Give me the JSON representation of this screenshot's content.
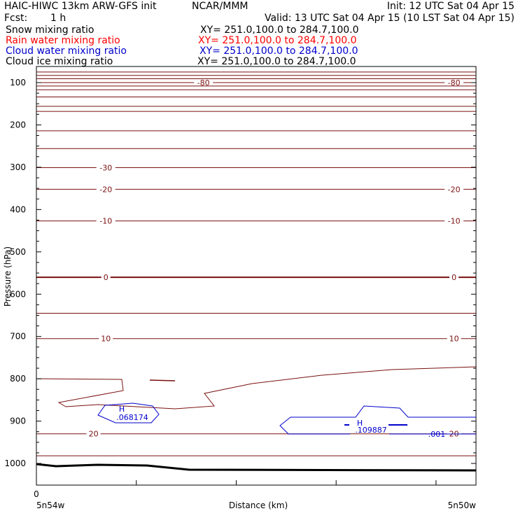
{
  "header": {
    "model": "HAIC-HIWC 13km ARW-GFS init",
    "org": "NCAR/MMM",
    "init": "Init: 12 UTC Sat 04 Apr 15",
    "fcst_label": "Fcst:",
    "fcst_value": "1 h",
    "valid": "Valid: 13 UTC Sat 04 Apr 15 (10 LST Sat 04 Apr 15)",
    "xy": "XY= 251.0,100.0 to 284.7,100.0"
  },
  "fields": [
    {
      "label": "Snow mixing ratio",
      "color": "#000000"
    },
    {
      "label": "Rain water mixing ratio",
      "color": "#ff0000"
    },
    {
      "label": "Cloud water mixing ratio",
      "color": "#0000cc"
    },
    {
      "label": "Cloud ice mixing ratio",
      "color": "#000000"
    }
  ],
  "colors": {
    "temperature": "#7a1010",
    "cloud_water": "#0000cc",
    "terrain": "#000000"
  },
  "chart_data": {
    "type": "cross-section contour",
    "ylabel": "Pressure (hPa)",
    "xlabel": "Distance (km)",
    "x_left_label": "5n54w",
    "x_right_label": "5n50w",
    "x_tick_labels": [
      "0"
    ],
    "xlim": [
      0,
      1
    ],
    "ylim": [
      1050,
      70
    ],
    "y_ticks": [
      100,
      200,
      300,
      400,
      500,
      600,
      700,
      800,
      900,
      1000
    ],
    "temperature_contours": [
      {
        "p": 75
      },
      {
        "p": 83
      },
      {
        "p": 91
      },
      {
        "p": 100,
        "label": "-80"
      },
      {
        "p": 108
      },
      {
        "p": 117
      },
      {
        "p": 134
      },
      {
        "p": 156
      },
      {
        "p": 168
      },
      {
        "p": 214
      },
      {
        "p": 256
      },
      {
        "p": 301,
        "label": "-30"
      },
      {
        "p": 352,
        "label": "-20"
      },
      {
        "p": 427,
        "label": "-10"
      },
      {
        "p": 560,
        "label": "0"
      },
      {
        "p": 645
      },
      {
        "p": 705,
        "label": "10"
      },
      {
        "p": 930,
        "label": "20"
      },
      {
        "p": 982
      }
    ],
    "cloud_water": {
      "highs": [
        {
          "label": "H",
          "value": ".068174"
        },
        {
          "label": "H",
          "value": ".109887"
        }
      ],
      "contour_label": ".001"
    }
  }
}
